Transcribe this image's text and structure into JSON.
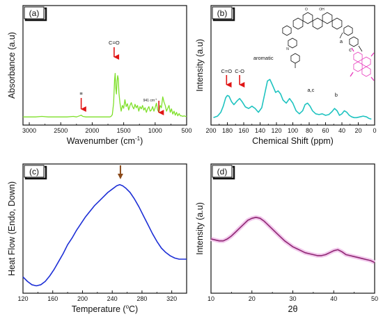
{
  "chart_data": [
    {
      "type": "line",
      "panel": "(a)",
      "xlabel": "Wavenumber (cm",
      "xlabel_sup": "-1",
      "xlabel_end": ")",
      "ylabel": "Absorbance (a.u)",
      "xlim": [
        3100,
        500
      ],
      "ylim": [
        0,
        1
      ],
      "xticks": [
        3000,
        2500,
        2000,
        1500,
        1000,
        500
      ],
      "color": "#7fe02a",
      "x": [
        3100,
        3000,
        2900,
        2800,
        2700,
        2600,
        2500,
        2400,
        2300,
        2250,
        2200,
        2175,
        2150,
        2100,
        2000,
        1900,
        1800,
        1720,
        1700,
        1680,
        1660,
        1645,
        1635,
        1625,
        1615,
        1605,
        1595,
        1585,
        1575,
        1560,
        1540,
        1520,
        1500,
        1480,
        1460,
        1440,
        1420,
        1400,
        1380,
        1360,
        1340,
        1320,
        1300,
        1280,
        1260,
        1240,
        1220,
        1200,
        1180,
        1160,
        1140,
        1120,
        1100,
        1080,
        1060,
        1040,
        1020,
        1000,
        980,
        960,
        940,
        920,
        900,
        880,
        860,
        840,
        820,
        800,
        780,
        760,
        740,
        720,
        700,
        680,
        660,
        640,
        620,
        600,
        580,
        560,
        540,
        520,
        500
      ],
      "y": [
        0.1,
        0.1,
        0.1,
        0.11,
        0.1,
        0.1,
        0.1,
        0.1,
        0.11,
        0.1,
        0.12,
        0.13,
        0.11,
        0.1,
        0.1,
        0.1,
        0.1,
        0.1,
        0.11,
        0.14,
        0.35,
        0.74,
        0.86,
        0.6,
        0.5,
        0.72,
        0.82,
        0.76,
        0.52,
        0.35,
        0.2,
        0.3,
        0.25,
        0.4,
        0.28,
        0.33,
        0.22,
        0.3,
        0.35,
        0.28,
        0.24,
        0.32,
        0.26,
        0.3,
        0.2,
        0.28,
        0.24,
        0.3,
        0.22,
        0.26,
        0.18,
        0.24,
        0.28,
        0.2,
        0.22,
        0.28,
        0.2,
        0.26,
        0.34,
        0.22,
        0.18,
        0.3,
        0.26,
        0.45,
        0.36,
        0.3,
        0.2,
        0.25,
        0.3,
        0.18,
        0.24,
        0.15,
        0.2,
        0.13,
        0.18,
        0.12,
        0.16,
        0.12,
        0.12,
        0.11,
        0.12,
        0.11,
        0.11
      ],
      "annotations": [
        {
          "text": "C=O",
          "x": 1630
        },
        {
          "text": "941 cm",
          "sup": "-1",
          "x": 941
        },
        {
          "text": "≡",
          "x": 2175
        }
      ]
    },
    {
      "type": "line",
      "panel": "(b)",
      "xlabel": "Chemical Shift (ppm)",
      "ylabel": "Intensity (a.u)",
      "xlim": [
        200,
        0
      ],
      "ylim": [
        0,
        1
      ],
      "xticks": [
        200,
        180,
        160,
        140,
        120,
        100,
        80,
        60,
        40,
        20,
        0
      ],
      "color": "#1ec3c0",
      "x": [
        197,
        192,
        188,
        185,
        182,
        180,
        178,
        175,
        172,
        168,
        165,
        162,
        158,
        154,
        150,
        146,
        142,
        138,
        134,
        131,
        128,
        125,
        121,
        118,
        115,
        112,
        108,
        104,
        100,
        96,
        92,
        88,
        85,
        82,
        79,
        76,
        72,
        68,
        64,
        60,
        56,
        52,
        49,
        46,
        43,
        40,
        37,
        34,
        31,
        28,
        25,
        22,
        18,
        14,
        10,
        7,
        4
      ],
      "y": [
        0.05,
        0.07,
        0.12,
        0.2,
        0.31,
        0.34,
        0.33,
        0.26,
        0.22,
        0.27,
        0.3,
        0.26,
        0.19,
        0.17,
        0.2,
        0.17,
        0.12,
        0.18,
        0.38,
        0.53,
        0.55,
        0.48,
        0.38,
        0.4,
        0.36,
        0.28,
        0.24,
        0.3,
        0.24,
        0.14,
        0.1,
        0.14,
        0.22,
        0.24,
        0.2,
        0.14,
        0.1,
        0.09,
        0.1,
        0.08,
        0.09,
        0.13,
        0.17,
        0.14,
        0.08,
        0.1,
        0.14,
        0.12,
        0.08,
        0.06,
        0.05,
        0.05,
        0.06,
        0.07,
        0.06,
        0.04,
        0.03
      ],
      "annotations": [
        {
          "text": "C=O",
          "x": 181
        },
        {
          "text": "C-O",
          "x": 165
        },
        {
          "text": "aromatic",
          "x": 136
        },
        {
          "text": "a,c",
          "x": 78
        },
        {
          "text": "b",
          "x": 47
        },
        {
          "text": "O",
          "x": 0
        },
        {
          "text": "OH",
          "x": 0
        },
        {
          "text": "N",
          "x": 0
        },
        {
          "text": "a",
          "x": 0
        },
        {
          "text": "c",
          "x": 0
        }
      ]
    },
    {
      "type": "line",
      "panel": "(c)",
      "xlabel": "Temperature (",
      "xlabel_deg": "o",
      "xlabel_end": "C)",
      "ylabel": "Heat Flow (Endo, Down)",
      "xlim": [
        120,
        340
      ],
      "ylim": [
        0,
        1
      ],
      "xticks": [
        120,
        160,
        200,
        240,
        280,
        320
      ],
      "color": "#1d2fd6",
      "x": [
        120,
        126,
        132,
        138,
        144,
        150,
        156,
        162,
        168,
        174,
        180,
        186,
        192,
        198,
        204,
        210,
        216,
        222,
        228,
        234,
        240,
        246,
        250,
        254,
        258,
        264,
        270,
        276,
        282,
        288,
        294,
        300,
        306,
        312,
        318,
        324,
        330,
        336,
        340
      ],
      "y": [
        0.1,
        0.06,
        0.03,
        0.02,
        0.03,
        0.06,
        0.11,
        0.17,
        0.24,
        0.31,
        0.39,
        0.45,
        0.52,
        0.58,
        0.64,
        0.69,
        0.74,
        0.78,
        0.82,
        0.86,
        0.89,
        0.92,
        0.93,
        0.92,
        0.9,
        0.86,
        0.8,
        0.73,
        0.65,
        0.57,
        0.49,
        0.42,
        0.36,
        0.32,
        0.29,
        0.27,
        0.26,
        0.26,
        0.26
      ],
      "arrow_x": 251
    },
    {
      "type": "line",
      "panel": "(d)",
      "xlabel": "2θ",
      "ylabel": "Intensity (a.u)",
      "xlim": [
        10,
        50
      ],
      "ylim": [
        0,
        1
      ],
      "xticks": [
        10,
        20,
        30,
        40,
        50
      ],
      "color": "#8e2672",
      "x": [
        10,
        11,
        12,
        13,
        14,
        15,
        16,
        17,
        18,
        19,
        20,
        21,
        22,
        23,
        24,
        25,
        26,
        27,
        28,
        29,
        30,
        31,
        32,
        33,
        34,
        35,
        36,
        37,
        38,
        39,
        40,
        41,
        42,
        43,
        44,
        45,
        46,
        47,
        48,
        49,
        50
      ],
      "y": [
        0.5,
        0.49,
        0.48,
        0.48,
        0.5,
        0.53,
        0.57,
        0.61,
        0.65,
        0.69,
        0.71,
        0.72,
        0.71,
        0.68,
        0.64,
        0.6,
        0.56,
        0.52,
        0.48,
        0.45,
        0.42,
        0.4,
        0.38,
        0.36,
        0.35,
        0.34,
        0.33,
        0.33,
        0.34,
        0.36,
        0.38,
        0.39,
        0.37,
        0.34,
        0.33,
        0.32,
        0.31,
        0.3,
        0.29,
        0.28,
        0.26
      ]
    }
  ]
}
